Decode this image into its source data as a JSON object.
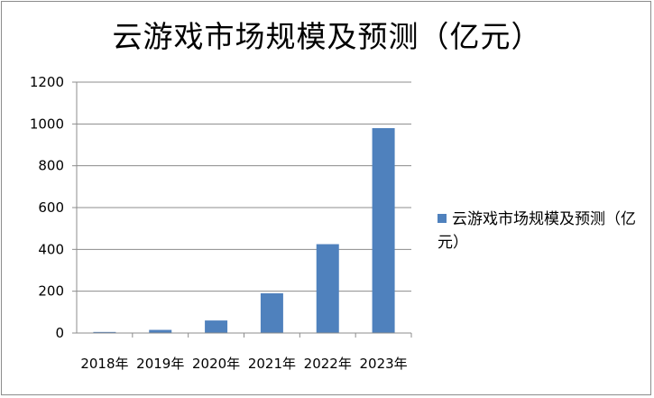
{
  "chart_data": {
    "type": "bar",
    "title": "云游戏市场规模及预测（亿元）",
    "categories": [
      "2018年",
      "2019年",
      "2020年",
      "2021年",
      "2022年",
      "2023年"
    ],
    "series": [
      {
        "name": "云游戏市场规模及预测（亿元）",
        "values": [
          5,
          15,
          60,
          190,
          425,
          980
        ]
      }
    ],
    "ylim": [
      0,
      1200
    ],
    "yticks": [
      0,
      200,
      400,
      600,
      800,
      1000,
      1200
    ],
    "grid": true,
    "legend_position": "right",
    "colors": {
      "bar": "#4f81bd",
      "grid": "#8c8c8c"
    }
  }
}
